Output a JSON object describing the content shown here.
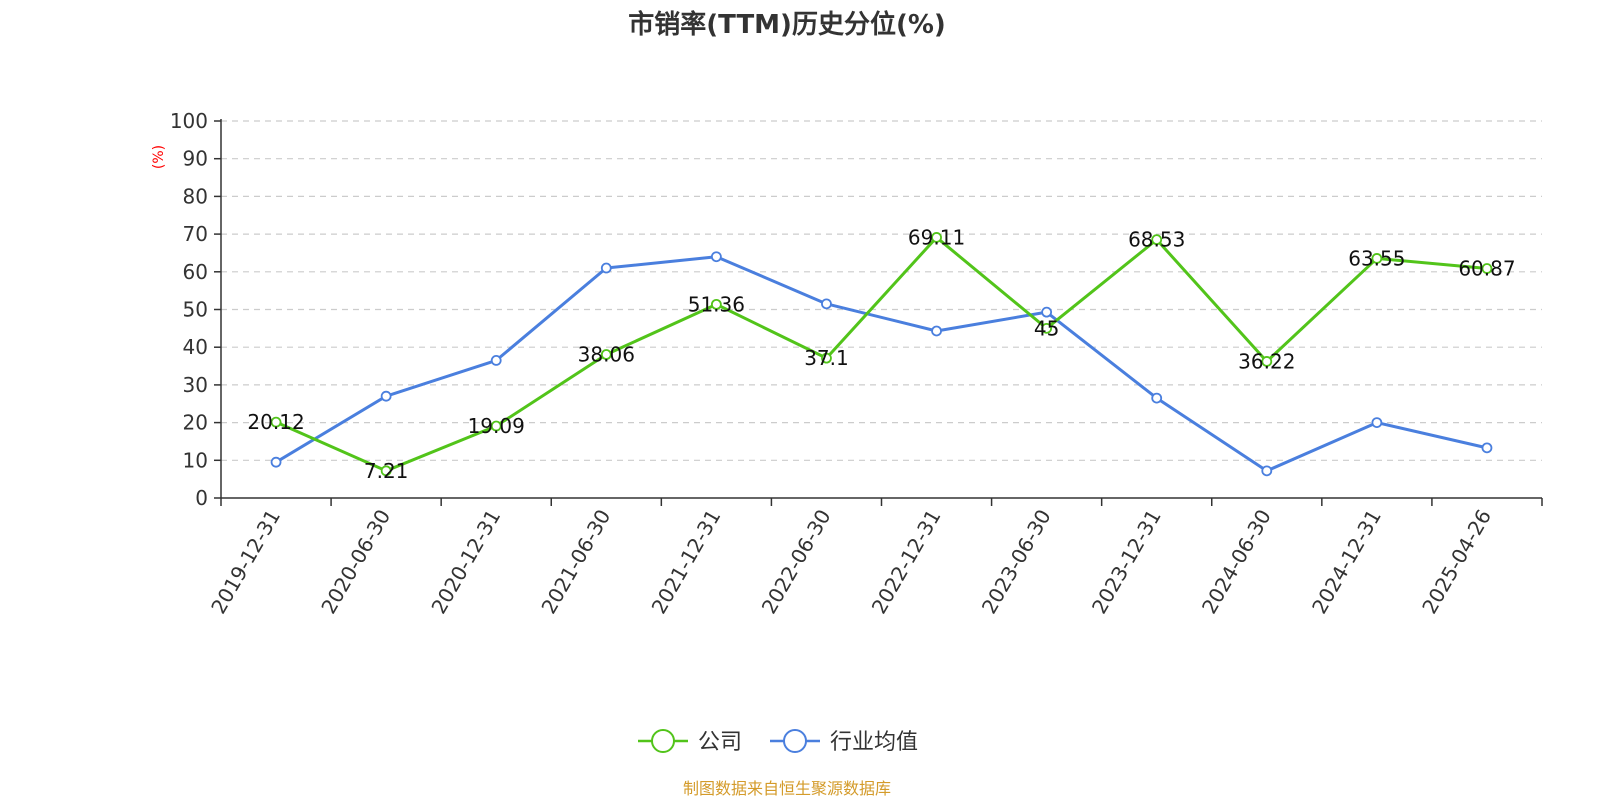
{
  "chart_data": {
    "type": "line",
    "title": "市销率(TTM)历史分位(%)",
    "ylabel": "(%)",
    "xlabel": "",
    "ylim": [
      0,
      100
    ],
    "yticks": [
      0,
      10,
      20,
      30,
      40,
      50,
      60,
      70,
      80,
      90,
      100
    ],
    "grid": true,
    "legend_position": "bottom",
    "categories": [
      "2019-12-31",
      "2020-06-30",
      "2020-12-31",
      "2021-06-30",
      "2021-12-31",
      "2022-06-30",
      "2022-12-31",
      "2023-06-30",
      "2023-12-31",
      "2024-06-30",
      "2024-12-31",
      "2025-04-26"
    ],
    "series": [
      {
        "name": "公司",
        "color": "#52c41a",
        "values": [
          20.12,
          7.21,
          19.09,
          38.06,
          51.36,
          37.1,
          69.11,
          45,
          68.53,
          36.22,
          63.55,
          60.87
        ],
        "labels": [
          "20.12",
          "7.21",
          "19.09",
          "38.06",
          "51.36",
          "37.1",
          "69.11",
          "45",
          "68.53",
          "36.22",
          "63.55",
          "60.87"
        ],
        "show_labels": true
      },
      {
        "name": "行业均值",
        "color": "#4a7fde",
        "values": [
          9.5,
          27,
          36.5,
          61,
          64,
          51.5,
          44.3,
          49.3,
          26.5,
          7.2,
          20,
          13.3
        ],
        "show_labels": false
      }
    ],
    "source": "制图数据来自恒生聚源数据库",
    "colors": {
      "title": "#333333",
      "axis": "#333333",
      "grid": "#cccccc",
      "ylabel": "#ff0000",
      "source": "#d49b2a"
    }
  }
}
